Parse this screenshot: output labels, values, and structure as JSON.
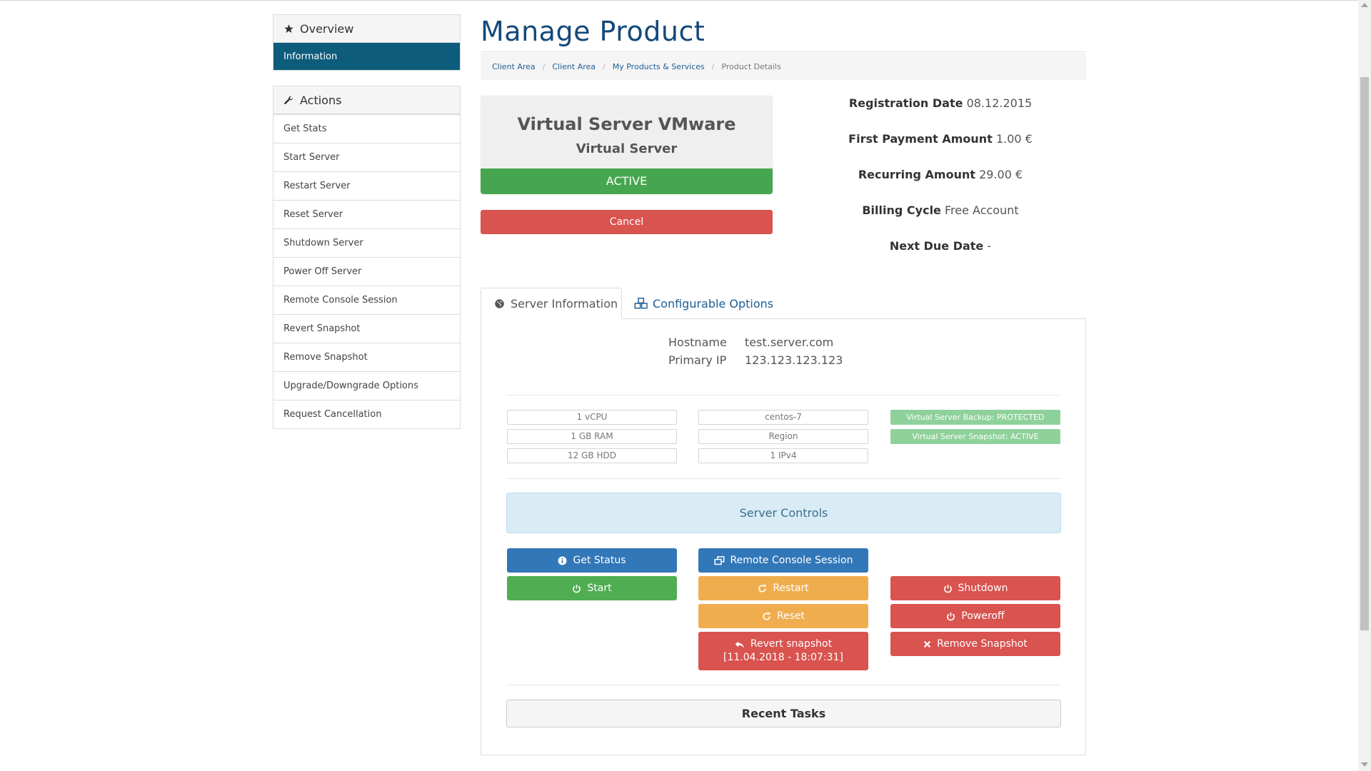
{
  "sidebar": {
    "overview": {
      "title": "Overview",
      "icon": "star-icon",
      "active_item": "Information"
    },
    "actions": {
      "title": "Actions",
      "icon": "wrench-icon",
      "items": [
        "Get Stats",
        "Start Server",
        "Restart Server",
        "Reset Server",
        "Shutdown Server",
        "Power Off Server",
        "Remote Console Session",
        "Revert Snapshot",
        "Remove Snapshot",
        "Upgrade/Downgrade Options",
        "Request Cancellation"
      ]
    }
  },
  "page": {
    "title": "Manage Product"
  },
  "breadcrumb": [
    "Client Area",
    "Client Area",
    "My Products & Services",
    "Product Details"
  ],
  "product": {
    "name": "Virtual Server VMware",
    "type": "Virtual Server",
    "status": "ACTIVE",
    "status_color": "#46a64f",
    "cancel_label": "Cancel"
  },
  "billing": {
    "registration_date_label": "Registration Date",
    "registration_date": "08.12.2015",
    "first_payment_label": "First Payment Amount",
    "first_payment": "1.00 €",
    "recurring_label": "Recurring Amount",
    "recurring": "29.00 €",
    "billing_cycle_label": "Billing Cycle",
    "billing_cycle": "Free Account",
    "next_due_label": "Next Due Date",
    "next_due": "-"
  },
  "tabs": {
    "server_info": "Server Information",
    "config_options": "Configurable Options"
  },
  "server": {
    "hostname_label": "Hostname",
    "hostname": "test.server.com",
    "ip_label": "Primary IP",
    "ip": "123.123.123.123",
    "specs_col1": [
      "1 vCPU",
      "1 GB RAM",
      "12 GB HDD"
    ],
    "specs_col2": [
      "centos-7",
      "Region",
      "1 IPv4"
    ],
    "badges": [
      "Virtual Server Backup: PROTECTED",
      "Virtual Server Snapshot: ACTIVE"
    ],
    "badge_color": "#8fd19b"
  },
  "controls": {
    "title": "Server Controls",
    "get_status": "Get Status",
    "remote_console": "Remote Console Session",
    "start": "Start",
    "restart": "Restart",
    "shutdown": "Shutdown",
    "reset": "Reset",
    "poweroff": "Poweroff",
    "revert_snapshot": "Revert snapshot",
    "revert_snapshot_date": "[11.04.2018 - 18:07:31]",
    "remove_snapshot": "Remove Snapshot"
  },
  "recent_tasks": {
    "title": "Recent Tasks"
  },
  "colors": {
    "primary": "#14497a",
    "active_nav": "#0d5c7c",
    "danger": "#d9534f",
    "warning": "#f0ad4e",
    "info": "#3277b8",
    "success": "#4fae51"
  }
}
